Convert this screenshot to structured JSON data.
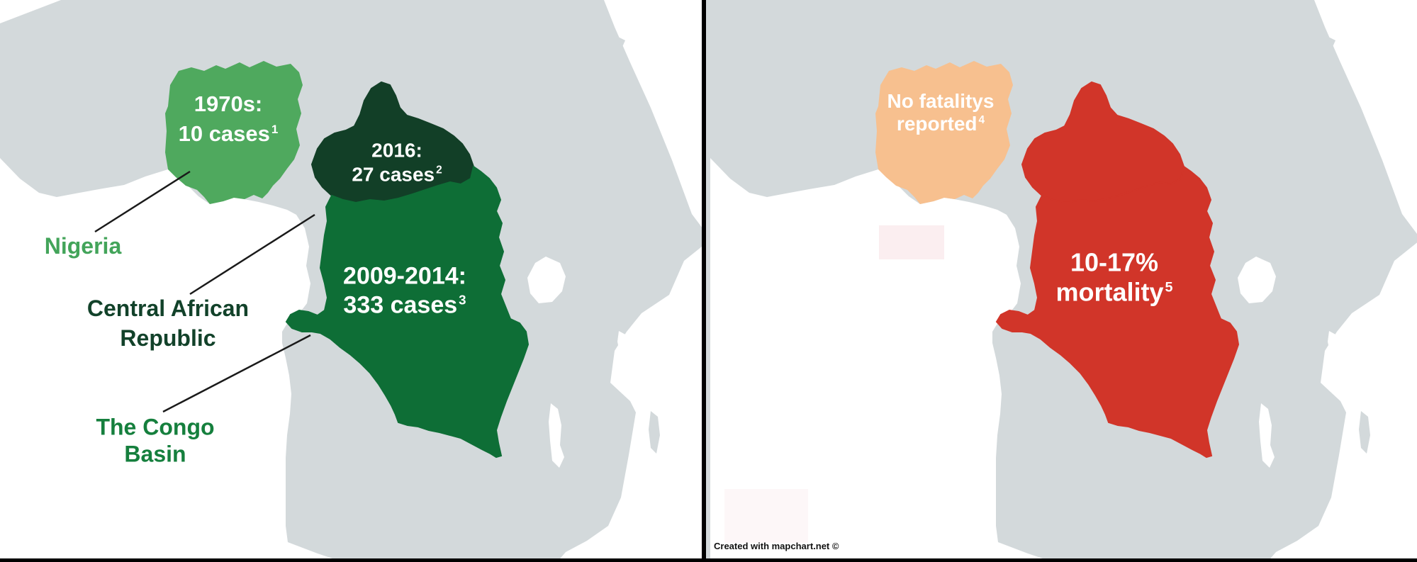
{
  "colors": {
    "ocean": "#ffffff",
    "land": "#d3d9db",
    "nigeria_green": "#4fa95e",
    "car_dark_green": "#123f27",
    "drc_green": "#0e6e36",
    "nigeria_label_green": "#43a45a",
    "car_label_green": "#12422a",
    "congo_label_green": "#157f3d",
    "orange": "#f7c08f",
    "red": "#d13529",
    "pink_faint": "#fbeef0",
    "leader_line": "#1a1a1a",
    "divider": "#000000",
    "credit_text": "#111111"
  },
  "left_map": {
    "annotations": {
      "nigeria_cases": {
        "line1": "1970s:",
        "line2": "10 cases",
        "sup": "1"
      },
      "car_cases": {
        "line1": "2016:",
        "line2": "27 cases",
        "sup": "2"
      },
      "drc_cases": {
        "line1": "2009-2014:",
        "line2": "333 cases",
        "sup": "3"
      }
    },
    "labels": {
      "nigeria": "Nigeria",
      "car": {
        "line1": "Central African",
        "line2": "Republic"
      },
      "congo_basin": {
        "line1": "The Congo",
        "line2": "Basin"
      }
    }
  },
  "right_map": {
    "annotations": {
      "nigeria_fatalities": {
        "line1": "No fatalitys",
        "line2": "reported",
        "sup": "4"
      },
      "drc_mortality": {
        "line1": "10-17%",
        "line2": "mortality",
        "sup": "5"
      }
    }
  },
  "credit": "Created with mapchart.net ©"
}
